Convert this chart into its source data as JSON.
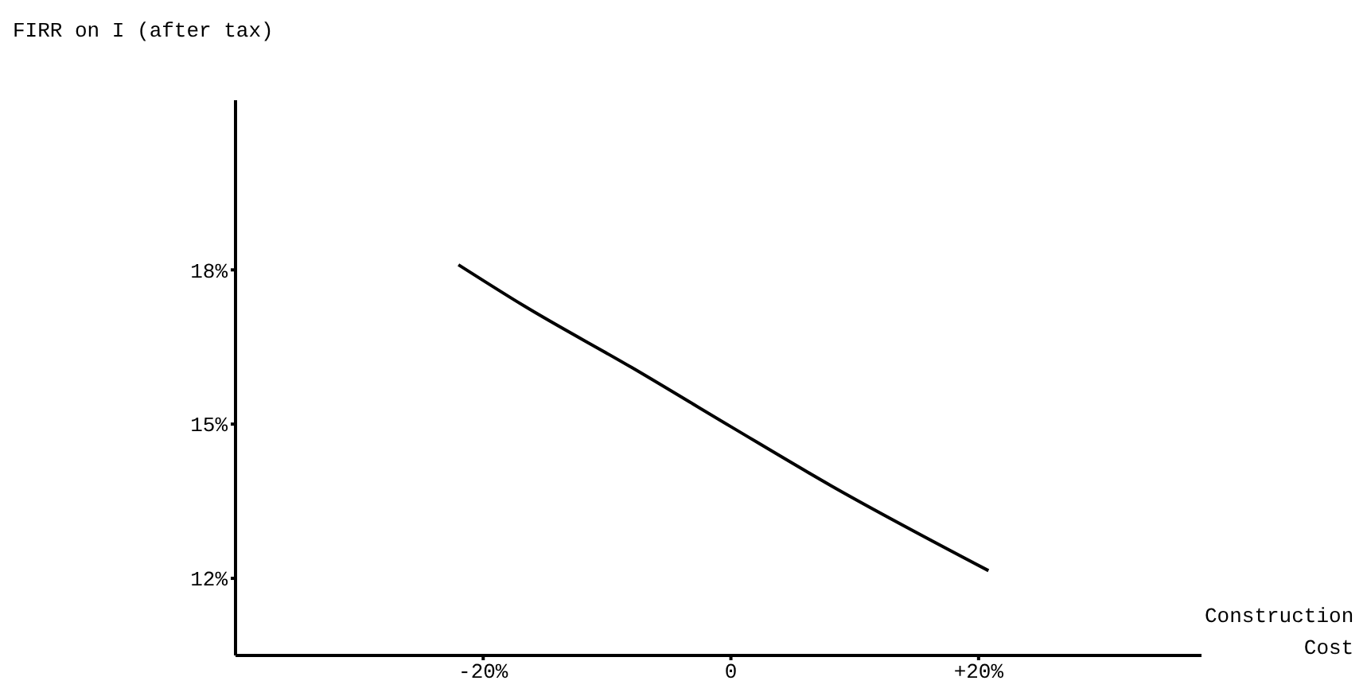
{
  "chart_data": {
    "type": "line",
    "ylabel": "FIRR on I (after tax)",
    "xlabel": "Construction Cost",
    "series": [
      {
        "color": "#000000",
        "x": [
          -22,
          -16.7,
          -8,
          0,
          8.1,
          20.8
        ],
        "values": [
          18.1,
          17.3,
          16.1,
          14.95,
          13.8,
          12.15
        ]
      }
    ],
    "xlim": [
      -40,
      38
    ],
    "xticks": [
      {
        "value": -20,
        "label": "-20%"
      },
      0,
      {
        "value": 20,
        "label": "+20%"
      }
    ],
    "ylim": [
      10.5,
      21.3
    ],
    "yticks": [
      {
        "value": 12,
        "label": "12%"
      },
      {
        "value": 15,
        "label": "15%"
      },
      {
        "value": 18,
        "label": "18%"
      }
    ],
    "grid": false,
    "legend": false,
    "marker": "none",
    "line_style": "solid"
  }
}
